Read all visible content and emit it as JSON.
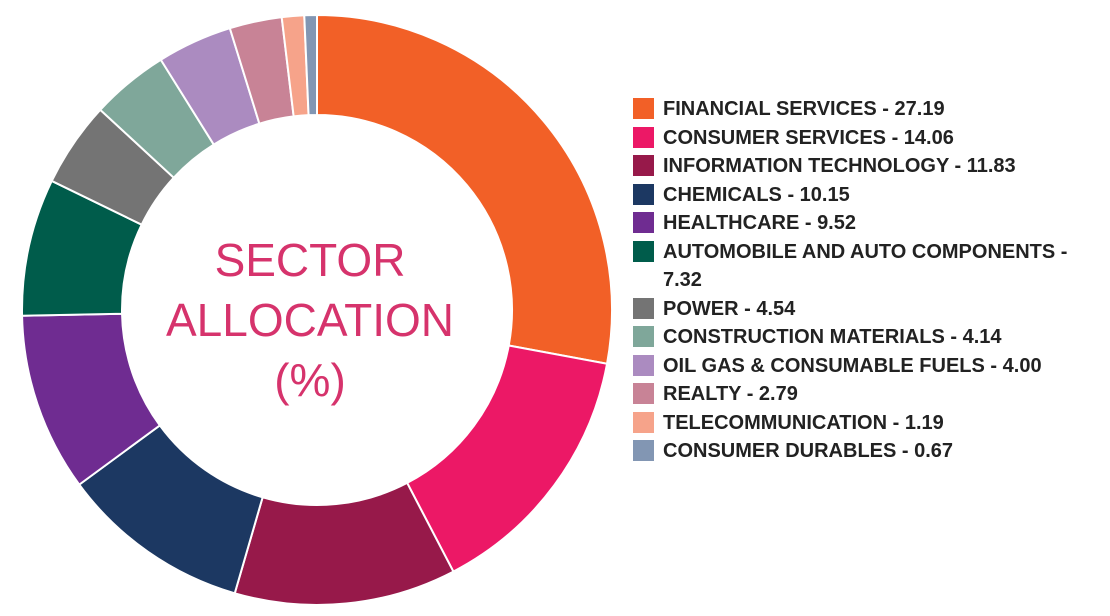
{
  "chart_data": {
    "type": "pie",
    "title_lines": [
      "SECTOR",
      "ALLOCATION",
      "(%)"
    ],
    "legend_position": "right",
    "slices": [
      {
        "label": "FINANCIAL SERVICES - 27.19",
        "value": 27.19,
        "color": "#f26027"
      },
      {
        "label": "CONSUMER SERVICES - 14.06",
        "value": 14.06,
        "color": "#ec1866"
      },
      {
        "label": "INFORMATION TECHNOLOGY - 11.83",
        "value": 11.83,
        "color": "#97194a"
      },
      {
        "label": "CHEMICALS - 10.15",
        "value": 10.15,
        "color": "#1c3862"
      },
      {
        "label": "HEALTHCARE - 9.52",
        "value": 9.52,
        "color": "#6f2c91"
      },
      {
        "label": "AUTOMOBILE AND AUTO COMPONENTS - 7.32",
        "value": 7.32,
        "color": "#005c4b"
      },
      {
        "label": "POWER - 4.54",
        "value": 4.54,
        "color": "#747474"
      },
      {
        "label": "CONSTRUCTION MATERIALS - 4.14",
        "value": 4.14,
        "color": "#7fa79a"
      },
      {
        "label": "OIL GAS & CONSUMABLE FUELS - 4.00",
        "value": 4.0,
        "color": "#ab8bc0"
      },
      {
        "label": "REALTY - 2.79",
        "value": 2.79,
        "color": "#c88396"
      },
      {
        "label": "TELECOMMUNICATION - 1.19",
        "value": 1.19,
        "color": "#f6a38a"
      },
      {
        "label": "CONSUMER DURABLES - 0.67",
        "value": 0.67,
        "color": "#8296b3"
      }
    ]
  }
}
